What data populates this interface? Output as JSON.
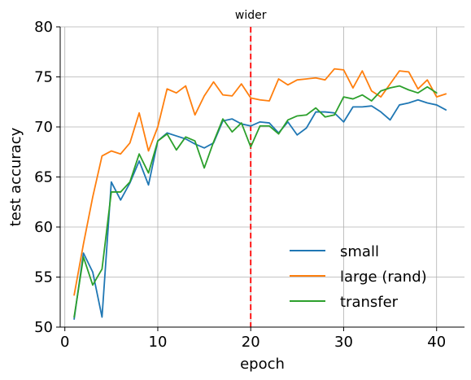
{
  "chart_data": {
    "type": "line",
    "xlabel": "epoch",
    "ylabel": "test accuracy",
    "xlim": [
      -0.5,
      43
    ],
    "ylim": [
      50,
      80
    ],
    "xticks": [
      0,
      10,
      20,
      30,
      40
    ],
    "yticks": [
      50,
      55,
      60,
      65,
      70,
      75,
      80
    ],
    "grid": true,
    "legend_position": "lower-right",
    "annotation": {
      "label": "wider",
      "x": 20,
      "style": "dashed",
      "color": "#ff0000"
    },
    "series": [
      {
        "name": "small",
        "color": "#1f77b4",
        "x": [
          1,
          2,
          3,
          4,
          5,
          6,
          7,
          8,
          9,
          10,
          11,
          12,
          13,
          14,
          15,
          16,
          17,
          18,
          19,
          20,
          21,
          22,
          23,
          24,
          25,
          26,
          27,
          28,
          29,
          30,
          31,
          32,
          33,
          34,
          35,
          36,
          37,
          38,
          39,
          40,
          41
        ],
        "y": [
          50.8,
          57.4,
          55.5,
          51.0,
          64.5,
          62.7,
          64.4,
          66.6,
          64.2,
          68.6,
          69.4,
          69.1,
          68.8,
          68.3,
          67.9,
          68.4,
          70.6,
          70.8,
          70.3,
          70.1,
          70.5,
          70.4,
          69.4,
          70.5,
          69.2,
          69.9,
          71.5,
          71.5,
          71.4,
          70.5,
          72.0,
          72.0,
          72.1,
          71.5,
          70.7,
          72.2,
          72.4,
          72.7,
          72.4,
          72.2,
          71.7
        ]
      },
      {
        "name": "large (rand)",
        "color": "#ff7f0e",
        "x": [
          1,
          2,
          3,
          4,
          5,
          6,
          7,
          8,
          9,
          10,
          11,
          12,
          13,
          14,
          15,
          16,
          17,
          18,
          19,
          20,
          21,
          22,
          23,
          24,
          25,
          26,
          27,
          28,
          29,
          30,
          31,
          32,
          33,
          34,
          35,
          36,
          37,
          38,
          39,
          40,
          41
        ],
        "y": [
          53.2,
          58.3,
          63.0,
          67.1,
          67.6,
          67.3,
          68.4,
          71.4,
          67.6,
          70.0,
          73.8,
          73.4,
          74.1,
          71.2,
          73.1,
          74.5,
          73.2,
          73.1,
          74.3,
          72.9,
          72.7,
          72.6,
          74.8,
          74.2,
          74.7,
          74.8,
          74.9,
          74.7,
          75.8,
          75.7,
          73.9,
          75.6,
          73.6,
          73.0,
          74.3,
          75.6,
          75.5,
          73.8,
          74.7,
          73.0,
          73.3
        ]
      },
      {
        "name": "transfer",
        "color": "#2ca02c",
        "x": [
          1,
          2,
          3,
          4,
          5,
          6,
          7,
          8,
          9,
          10,
          11,
          12,
          13,
          14,
          15,
          16,
          17,
          18,
          19,
          20,
          21,
          22,
          23,
          24,
          25,
          26,
          27,
          28,
          29,
          30,
          31,
          32,
          33,
          34,
          35,
          36,
          37,
          38,
          39,
          40
        ],
        "y": [
          51.0,
          57.0,
          54.2,
          55.8,
          63.5,
          63.5,
          64.5,
          67.3,
          65.4,
          68.6,
          69.3,
          67.7,
          69.0,
          68.6,
          65.9,
          68.5,
          70.8,
          69.5,
          70.4,
          68.0,
          70.1,
          70.1,
          69.3,
          70.7,
          71.1,
          71.2,
          71.9,
          71.0,
          71.2,
          73.0,
          72.8,
          73.2,
          72.6,
          73.6,
          73.9,
          74.1,
          73.7,
          73.4,
          74.0,
          73.4
        ]
      }
    ]
  }
}
